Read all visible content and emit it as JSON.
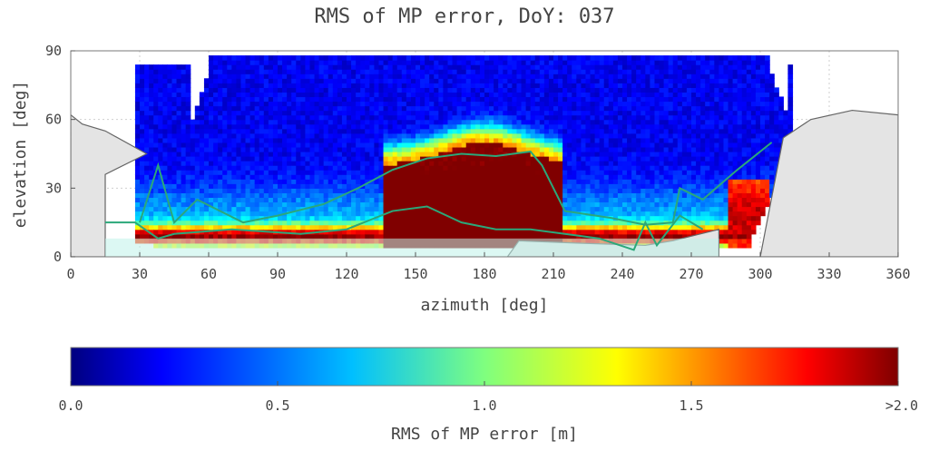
{
  "chart_data": {
    "type": "heatmap",
    "title": "RMS of MP error, DoY: 037",
    "xlabel": "azimuth [deg]",
    "ylabel": "elevation [deg]",
    "xlim": [
      0,
      360
    ],
    "ylim": [
      0,
      90
    ],
    "x_ticks": [
      "0",
      "30",
      "60",
      "90",
      "120",
      "150",
      "180",
      "210",
      "240",
      "270",
      "300",
      "330",
      "360"
    ],
    "y_ticks": [
      "0",
      "30",
      "60",
      "90"
    ],
    "grid": true,
    "colorbar": {
      "label": "RMS of MP error [m]",
      "range": [
        0,
        2
      ],
      "ticks": [
        "0.0",
        "0.5",
        "1.0",
        "1.5",
        ">2.0"
      ],
      "colormap": "jet"
    },
    "horizon_mask_gray": [
      [
        0,
        62
      ],
      [
        5,
        58
      ],
      [
        15,
        55
      ],
      [
        33,
        45
      ],
      [
        15,
        36
      ],
      [
        15,
        0
      ],
      [
        190,
        0
      ],
      [
        195,
        7
      ],
      [
        220,
        6
      ],
      [
        250,
        5
      ],
      [
        262,
        7
      ],
      [
        282,
        12
      ],
      [
        282,
        0
      ],
      [
        300,
        0
      ],
      [
        310,
        52
      ],
      [
        322,
        60
      ],
      [
        340,
        64
      ],
      [
        360,
        62
      ]
    ],
    "lines": [
      {
        "color": "#2ba87a",
        "points": [
          [
            30,
            15
          ],
          [
            38,
            40
          ],
          [
            45,
            15
          ],
          [
            55,
            25
          ],
          [
            65,
            20
          ],
          [
            75,
            15
          ],
          [
            90,
            18
          ],
          [
            110,
            23
          ],
          [
            125,
            30
          ],
          [
            140,
            38
          ],
          [
            155,
            43
          ],
          [
            170,
            45
          ],
          [
            185,
            44
          ],
          [
            200,
            46
          ],
          [
            205,
            40
          ],
          [
            215,
            20
          ],
          [
            235,
            17
          ],
          [
            250,
            14
          ],
          [
            262,
            15
          ],
          [
            265,
            30
          ],
          [
            275,
            25
          ],
          [
            290,
            38
          ],
          [
            305,
            50
          ]
        ]
      },
      {
        "color": "#2ba87a",
        "points": [
          [
            15,
            15
          ],
          [
            28,
            15
          ],
          [
            38,
            8
          ],
          [
            45,
            10
          ],
          [
            70,
            12
          ],
          [
            100,
            10
          ],
          [
            120,
            12
          ],
          [
            140,
            20
          ],
          [
            155,
            22
          ],
          [
            170,
            15
          ],
          [
            185,
            12
          ],
          [
            200,
            12
          ],
          [
            215,
            10
          ],
          [
            230,
            8
          ],
          [
            245,
            3
          ],
          [
            250,
            15
          ],
          [
            255,
            5
          ],
          [
            265,
            18
          ],
          [
            275,
            12
          ]
        ]
      }
    ],
    "value_description": "low values (~0.2-0.5 m) at high elevations; high values (>1.5 m) near the horizon, max (>2.0 m) at azimuth 140-210 deg, elevation 10-50 deg"
  }
}
